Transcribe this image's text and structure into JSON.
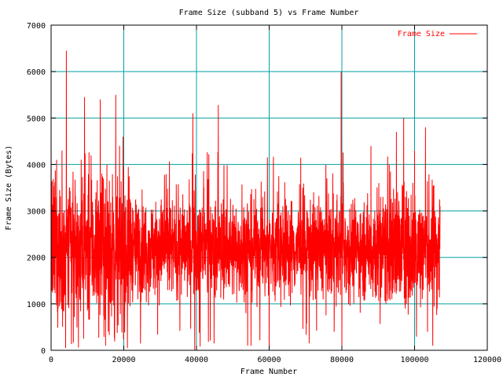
{
  "chart_data": {
    "type": "line",
    "title": "Frame Size (subband 5) vs Frame Number",
    "xlabel": "Frame Number",
    "ylabel": "Frame Size (Bytes)",
    "xlim": [
      0,
      120000
    ],
    "ylim": [
      0,
      7000
    ],
    "x_ticks": [
      0,
      20000,
      40000,
      60000,
      80000,
      100000,
      120000
    ],
    "y_ticks": [
      0,
      1000,
      2000,
      3000,
      4000,
      5000,
      6000,
      7000
    ],
    "grid": true,
    "legend_position": "top-right",
    "x_end": 107000,
    "series": [
      {
        "name": "Frame Size",
        "color": "#ff0000",
        "baseline": 2200,
        "peaks": [
          {
            "x": 0,
            "y": 4800
          },
          {
            "x": 500,
            "y": 1300
          },
          {
            "x": 1500,
            "y": 4100
          },
          {
            "x": 3000,
            "y": 4300
          },
          {
            "x": 4000,
            "y": 50
          },
          {
            "x": 4200,
            "y": 6450
          },
          {
            "x": 7500,
            "y": 60
          },
          {
            "x": 9200,
            "y": 5450
          },
          {
            "x": 11000,
            "y": 4200
          },
          {
            "x": 13500,
            "y": 5400
          },
          {
            "x": 15000,
            "y": 100
          },
          {
            "x": 17800,
            "y": 5500
          },
          {
            "x": 19800,
            "y": 4600
          },
          {
            "x": 21000,
            "y": 50
          },
          {
            "x": 39000,
            "y": 5100
          },
          {
            "x": 39500,
            "y": 0
          },
          {
            "x": 41000,
            "y": 80
          },
          {
            "x": 46000,
            "y": 5280
          },
          {
            "x": 55000,
            "y": 100
          },
          {
            "x": 59500,
            "y": 4150
          },
          {
            "x": 60000,
            "y": 0
          },
          {
            "x": 71000,
            "y": 150
          },
          {
            "x": 79800,
            "y": 6000
          },
          {
            "x": 80000,
            "y": 100
          },
          {
            "x": 88000,
            "y": 4400
          },
          {
            "x": 95000,
            "y": 4700
          },
          {
            "x": 97000,
            "y": 5000
          },
          {
            "x": 100000,
            "y": 4300
          },
          {
            "x": 103000,
            "y": 4800
          },
          {
            "x": 105000,
            "y": 100
          },
          {
            "x": 107000,
            "y": 3100
          }
        ]
      }
    ]
  }
}
